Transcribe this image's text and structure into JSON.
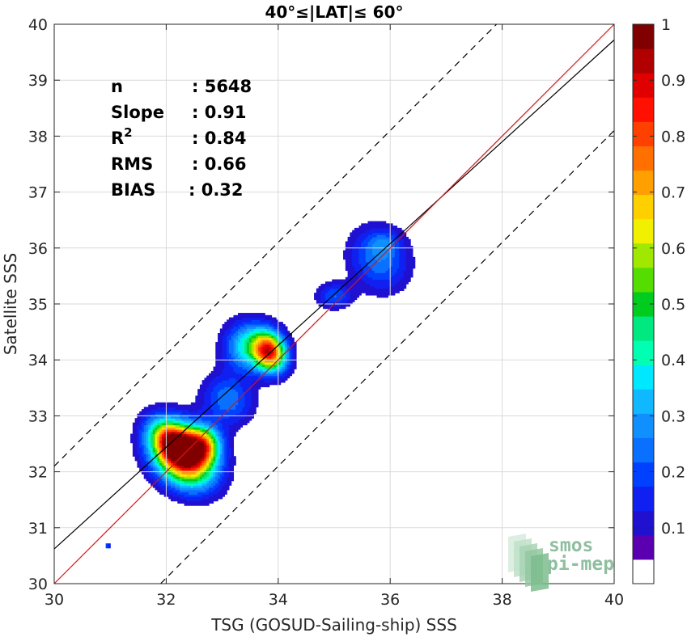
{
  "chart_data": {
    "type": "contour",
    "title": "40°≤|LAT|≤ 60°",
    "xlabel": "TSG (GOSUD-Sailing-ship) SSS",
    "ylabel": "Satellite SSS",
    "xlim": [
      30,
      40
    ],
    "ylim": [
      30,
      40
    ],
    "xticks": [
      "30",
      "32",
      "34",
      "36",
      "38",
      "40"
    ],
    "yticks": [
      "30",
      "31",
      "32",
      "33",
      "34",
      "35",
      "36",
      "37",
      "38",
      "39",
      "40"
    ],
    "grid": true,
    "stats": [
      {
        "label": "n",
        "value": ": 5648"
      },
      {
        "label": "Slope",
        "value": ": 0.91"
      },
      {
        "label": "R",
        "sup": "2",
        "value": ": 0.84"
      },
      {
        "label": "RMS",
        "value": ": 0.66"
      },
      {
        "label": "BIAS",
        "value": ": 0.32"
      }
    ],
    "lines": {
      "identity": {
        "slope": 1.0,
        "intercept": 0.0,
        "color": "#e01010"
      },
      "fit": {
        "slope": 0.91,
        "intercept": 3.32,
        "color": "#000000"
      },
      "upper_dashed": {
        "slope": 1.0,
        "intercept": 2.1
      },
      "lower_dashed": {
        "slope": 1.0,
        "intercept": -1.9
      }
    },
    "density_blobs": [
      {
        "cx": 32.3,
        "cy": 32.3,
        "sx": 0.32,
        "sy": 0.42,
        "rot": 45,
        "peak": 0.97
      },
      {
        "cx": 32.1,
        "cy": 32.55,
        "sx": 0.2,
        "sy": 0.3,
        "rot": 45,
        "peak": 0.45
      },
      {
        "cx": 32.65,
        "cy": 32.5,
        "sx": 0.22,
        "sy": 0.22,
        "rot": 0,
        "peak": 0.5
      },
      {
        "cx": 33.85,
        "cy": 34.15,
        "sx": 0.2,
        "sy": 0.25,
        "rot": 20,
        "peak": 0.8
      },
      {
        "cx": 33.45,
        "cy": 34.25,
        "sx": 0.28,
        "sy": 0.3,
        "rot": 0,
        "peak": 0.35
      },
      {
        "cx": 33.1,
        "cy": 33.3,
        "sx": 0.3,
        "sy": 0.32,
        "rot": 45,
        "peak": 0.22
      },
      {
        "cx": 35.0,
        "cy": 35.15,
        "sx": 0.22,
        "sy": 0.16,
        "rot": 0,
        "peak": 0.18
      },
      {
        "cx": 35.8,
        "cy": 35.8,
        "sx": 0.35,
        "sy": 0.4,
        "rot": 30,
        "peak": 0.22
      },
      {
        "cx": 35.9,
        "cy": 36.1,
        "sx": 0.2,
        "sy": 0.15,
        "rot": 0,
        "peak": 0.1
      },
      {
        "cx": 30.95,
        "cy": 30.68,
        "sx": 0.03,
        "sy": 0.03,
        "rot": 0,
        "peak": 0.2
      }
    ],
    "colorbar": {
      "ticks": [
        "0.1",
        "0.2",
        "0.3",
        "0.4",
        "0.5",
        "0.6",
        "0.7",
        "0.8",
        "0.9",
        "1"
      ],
      "range": [
        0,
        1
      ],
      "colors": [
        "#ffffff",
        "#5a00b0",
        "#2010d0",
        "#1020f0",
        "#0040ff",
        "#0a70ff",
        "#1090ff",
        "#10b8ff",
        "#00e8ff",
        "#00ffb0",
        "#00e880",
        "#00cc20",
        "#55dd00",
        "#a0e800",
        "#f0f000",
        "#ffd000",
        "#ffa000",
        "#ff7000",
        "#ff4000",
        "#ff1000",
        "#e00000",
        "#b00000",
        "#800000"
      ]
    }
  },
  "logo": {
    "line1": "smos",
    "line2": "pi-mep"
  }
}
